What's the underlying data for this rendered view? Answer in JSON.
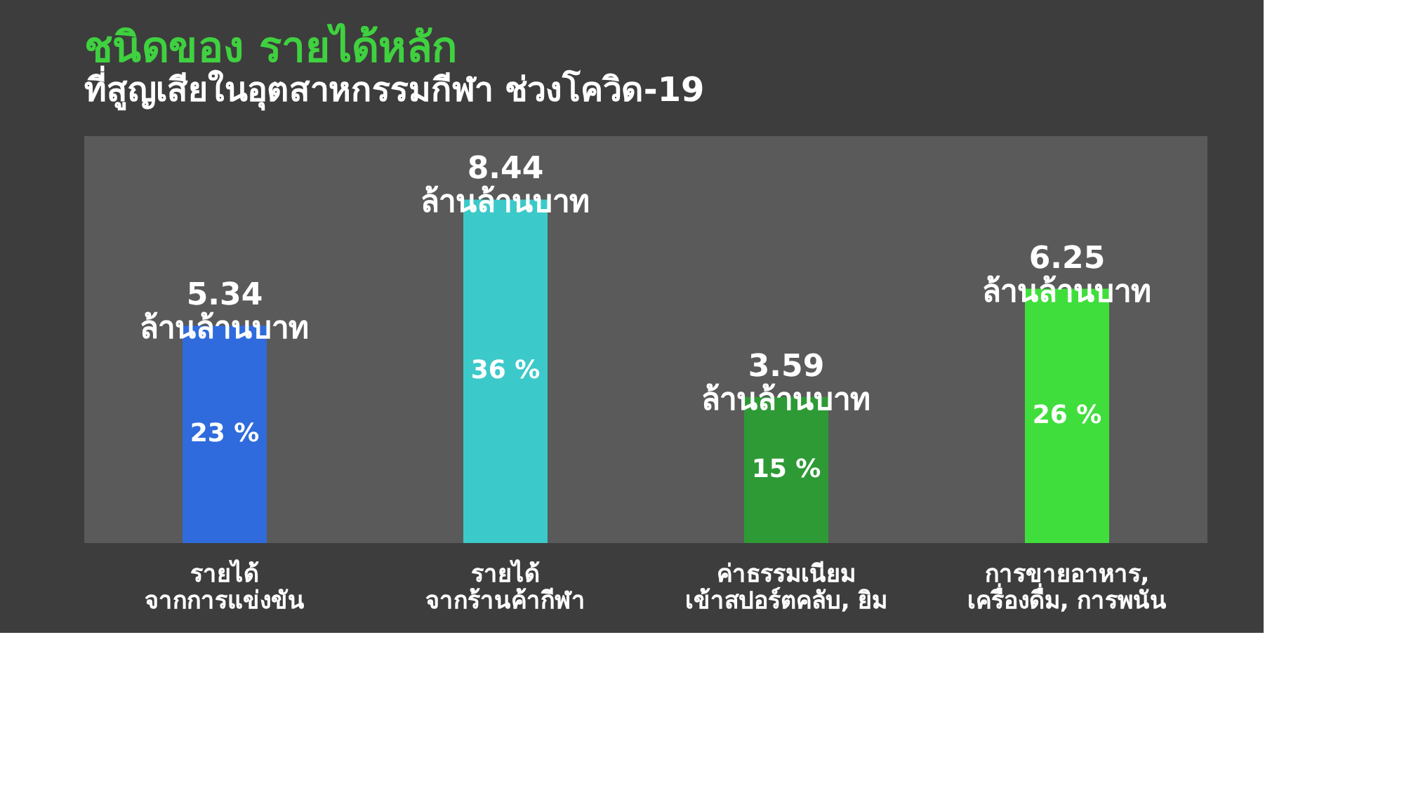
{
  "chart_data": {
    "type": "bar",
    "title": "ชนิดของ รายได้หลัก",
    "subtitle": "ที่สูญเสียในอุตสาหกรรมกีฬา ช่วงโควิด-19",
    "categories": [
      "รายได้\nจากการแข่งขัน",
      "รายได้\nจากร้านค้ากีฬา",
      "ค่าธรรมเนียม\nเข้าสปอร์ตคลับ, ยิม",
      "การขายอาหาร,\nเครื่องดื่ม, การพนัน"
    ],
    "values": [
      5.34,
      8.44,
      3.59,
      6.25
    ],
    "colors": [
      "#2f6bdc",
      "#3cc9c9",
      "#2e9a36",
      "#40de3c"
    ],
    "value_labels": [
      "5.34\nล้านล้านบาท",
      "8.44\nล้านล้านบาท",
      "3.59\nล้านล้านบาท",
      "6.25\nล้านล้านบาท"
    ],
    "annotations": [
      "23 %",
      "36 %",
      "15 %",
      "26 %"
    ],
    "ylim": [
      0,
      10
    ],
    "tick_labels": "x",
    "grid": false
  }
}
